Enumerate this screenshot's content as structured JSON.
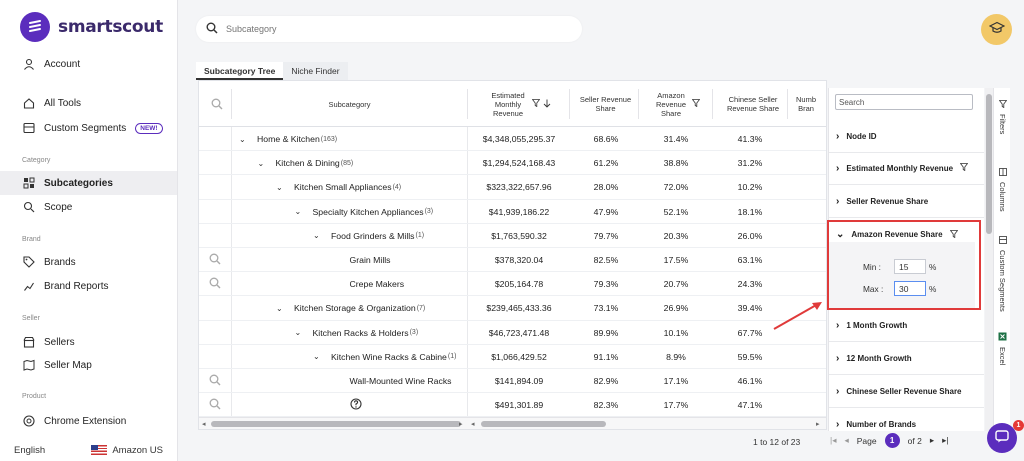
{
  "brand": {
    "name": "smartscout"
  },
  "sidebar": {
    "account": "Account",
    "all_tools": "All Tools",
    "custom_segments": "Custom Segments",
    "new_badge": "NEW!",
    "section_category": "Category",
    "subcategories": "Subcategories",
    "scope": "Scope",
    "section_brand": "Brand",
    "brands": "Brands",
    "brand_reports": "Brand Reports",
    "section_seller": "Seller",
    "sellers": "Sellers",
    "seller_map": "Seller Map",
    "section_product": "Product",
    "chrome_extension": "Chrome Extension",
    "language": "English",
    "marketplace": "Amazon US"
  },
  "search": {
    "placeholder": "Subcategory"
  },
  "tabs": [
    {
      "label": "Subcategory Tree"
    },
    {
      "label": "Niche Finder"
    }
  ],
  "columns": {
    "subcategory": "Subcategory",
    "est_revenue": "Estimated Monthly Revenue",
    "seller_share": "Seller Revenue Share",
    "amazon_share": "Amazon Revenue Share",
    "chinese_share": "Chinese Seller Revenue Share",
    "num_brands": "Numb Bran"
  },
  "rows": [
    {
      "name": "Home & Kitchen",
      "count": "(163)",
      "rev": "$4,348,055,295.37",
      "seller": "68.6%",
      "amazon": "31.4%",
      "chinese": "41.3%"
    },
    {
      "name": "Kitchen & Dining",
      "count": "(85)",
      "rev": "$1,294,524,168.43",
      "seller": "61.2%",
      "amazon": "38.8%",
      "chinese": "31.2%"
    },
    {
      "name": "Kitchen Small Appliances",
      "count": "(4)",
      "rev": "$323,322,657.96",
      "seller": "28.0%",
      "amazon": "72.0%",
      "chinese": "10.2%"
    },
    {
      "name": "Specialty Kitchen Appliances",
      "count": "(3)",
      "rev": "$41,939,186.22",
      "seller": "47.9%",
      "amazon": "52.1%",
      "chinese": "18.1%"
    },
    {
      "name": "Food Grinders & Mills",
      "count": "(1)",
      "rev": "$1,763,590.32",
      "seller": "79.7%",
      "amazon": "20.3%",
      "chinese": "26.0%"
    },
    {
      "name": "Grain Mills",
      "count": "",
      "rev": "$378,320.04",
      "seller": "82.5%",
      "amazon": "17.5%",
      "chinese": "63.1%"
    },
    {
      "name": "Crepe Makers",
      "count": "",
      "rev": "$205,164.78",
      "seller": "79.3%",
      "amazon": "20.7%",
      "chinese": "24.3%"
    },
    {
      "name": "Kitchen Storage & Organization",
      "count": "(7)",
      "rev": "$239,465,433.36",
      "seller": "73.1%",
      "amazon": "26.9%",
      "chinese": "39.4%"
    },
    {
      "name": "Kitchen Racks & Holders",
      "count": "(3)",
      "rev": "$46,723,471.48",
      "seller": "89.9%",
      "amazon": "10.1%",
      "chinese": "67.7%"
    },
    {
      "name": "Kitchen Wine Racks & Cabine",
      "count": "(1)",
      "rev": "$1,066,429.52",
      "seller": "91.1%",
      "amazon": "8.9%",
      "chinese": "59.5%"
    },
    {
      "name": "Wall-Mounted Wine Racks",
      "count": "",
      "rev": "$141,894.09",
      "seller": "82.9%",
      "amazon": "17.1%",
      "chinese": "46.1%"
    },
    {
      "name": "",
      "count": "",
      "rev": "$491,301.89",
      "seller": "82.3%",
      "amazon": "17.7%",
      "chinese": "47.1%"
    }
  ],
  "pager": {
    "range": "1 to 12 of 23",
    "page_label": "Page",
    "page": "1",
    "of_label": "of 2"
  },
  "filters": {
    "search_placeholder": "Search",
    "items": [
      "Node ID",
      "Estimated Monthly Revenue",
      "Seller Revenue Share",
      "Amazon Revenue Share",
      "1 Month Growth",
      "12 Month Growth",
      "Chinese Seller Revenue Share",
      "Number of Brands"
    ],
    "min_label": "Min :",
    "max_label": "Max :",
    "min_value": "15",
    "max_value": "30",
    "unit": "%"
  },
  "strip": {
    "filters": "Filters",
    "columns": "Columns",
    "custom_segments": "Custom Segments",
    "excel": "Excel"
  },
  "chat": {
    "badge": "1"
  },
  "colors": {
    "brand": "#5b2dbd",
    "highlight": "#e03a3a"
  }
}
